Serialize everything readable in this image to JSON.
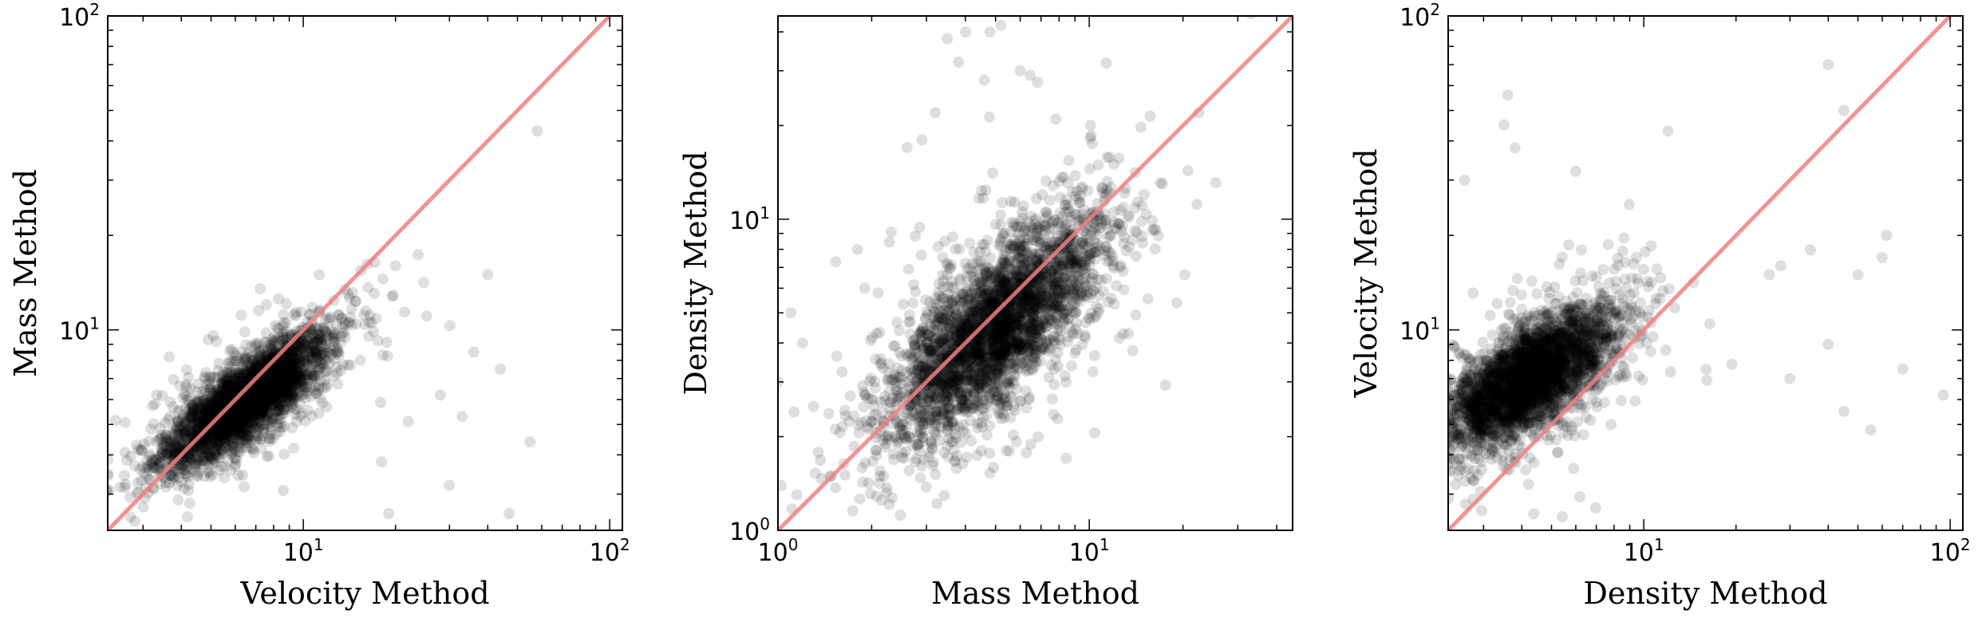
{
  "chart_data": [
    {
      "type": "scatter",
      "xlabel": "Velocity Method",
      "ylabel": "Mass Method",
      "xscale": "log",
      "yscale": "log",
      "xlim": [
        2.3,
        110
      ],
      "ylim": [
        2.3,
        100
      ],
      "x_tick_labels": [
        {
          "base": "10",
          "exp": "1",
          "value": 10
        },
        {
          "base": "10",
          "exp": "2",
          "value": 100
        }
      ],
      "y_tick_labels": [
        {
          "base": "10",
          "exp": "1",
          "value": 10
        },
        {
          "base": "10",
          "exp": "2",
          "value": 100
        }
      ],
      "reference_line": "y = x",
      "cloud": {
        "center": [
          6.5,
          6.0
        ],
        "log_sigma_major": 0.16,
        "log_sigma_minor": 0.05,
        "angle_deg": 38
      },
      "outliers": [
        [
          58,
          43
        ],
        [
          40,
          15
        ],
        [
          44,
          7.5
        ],
        [
          36,
          8.5
        ],
        [
          28,
          6.2
        ],
        [
          22,
          5.1
        ],
        [
          33,
          5.3
        ],
        [
          18,
          3.8
        ],
        [
          55,
          4.4
        ],
        [
          47,
          2.6
        ],
        [
          30,
          3.2
        ],
        [
          19,
          2.6
        ],
        [
          14,
          13
        ],
        [
          16,
          11.5
        ],
        [
          20,
          16
        ]
      ],
      "colors": {
        "points": "#000000",
        "reference_line": "#f08080"
      },
      "grid": false
    },
    {
      "type": "scatter",
      "xlabel": "Mass Method",
      "ylabel": "Density Method",
      "xscale": "log",
      "yscale": "log",
      "xlim": [
        1,
        45
      ],
      "ylim": [
        1,
        45
      ],
      "x_tick_labels": [
        {
          "base": "10",
          "exp": "0",
          "value": 1
        },
        {
          "base": "10",
          "exp": "1",
          "value": 10
        }
      ],
      "y_tick_labels": [
        {
          "base": "10",
          "exp": "0",
          "value": 1
        },
        {
          "base": "10",
          "exp": "1",
          "value": 10
        }
      ],
      "reference_line": "y = x",
      "cloud": {
        "center": [
          5.0,
          4.5
        ],
        "log_sigma_major": 0.23,
        "log_sigma_minor": 0.09,
        "angle_deg": 47
      },
      "outliers": [
        [
          4.0,
          40
        ],
        [
          3.5,
          38
        ],
        [
          4.8,
          40
        ],
        [
          5.2,
          42
        ],
        [
          3.8,
          32
        ],
        [
          2.9,
          18
        ],
        [
          2.6,
          17
        ],
        [
          3.2,
          22
        ],
        [
          6.0,
          30
        ],
        [
          4.6,
          28
        ],
        [
          1.8,
          8
        ],
        [
          1.9,
          6
        ],
        [
          1.2,
          4
        ],
        [
          1.1,
          5
        ],
        [
          1.0,
          3
        ],
        [
          1.15,
          1.3
        ],
        [
          15,
          12
        ],
        [
          12,
          15
        ],
        [
          1.3,
          2.5
        ]
      ],
      "colors": {
        "points": "#000000",
        "reference_line": "#f08080"
      },
      "grid": false
    },
    {
      "type": "scatter",
      "xlabel": "Density Method",
      "ylabel": "Velocity Method",
      "xscale": "log",
      "yscale": "log",
      "xlim": [
        2.3,
        110
      ],
      "ylim": [
        2.3,
        100
      ],
      "x_tick_labels": [
        {
          "base": "10",
          "exp": "1",
          "value": 10
        },
        {
          "base": "10",
          "exp": "2",
          "value": 100
        }
      ],
      "y_tick_labels": [
        {
          "base": "10",
          "exp": "1",
          "value": 10
        },
        {
          "base": "10",
          "exp": "2",
          "value": 100
        }
      ],
      "reference_line": "y = x",
      "cloud": {
        "center": [
          4.2,
          7.0
        ],
        "log_sigma_major": 0.17,
        "log_sigma_minor": 0.07,
        "angle_deg": 36
      },
      "outliers": [
        [
          40,
          70
        ],
        [
          45,
          50
        ],
        [
          3.6,
          56
        ],
        [
          3.5,
          45
        ],
        [
          3.8,
          38
        ],
        [
          2.6,
          30
        ],
        [
          12,
          43
        ],
        [
          6.0,
          32
        ],
        [
          95,
          6.2
        ],
        [
          70,
          7.5
        ],
        [
          55,
          4.8
        ],
        [
          40,
          9
        ],
        [
          45,
          5.5
        ],
        [
          30,
          7
        ],
        [
          28,
          16
        ],
        [
          35,
          18
        ],
        [
          60,
          17
        ],
        [
          62,
          20
        ],
        [
          50,
          15
        ]
      ],
      "colors": {
        "points": "#000000",
        "reference_line": "#f08080"
      },
      "grid": false
    }
  ]
}
